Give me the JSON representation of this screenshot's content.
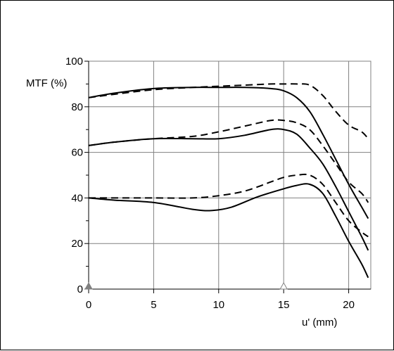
{
  "chart_data": {
    "type": "line",
    "title": "",
    "ylabel": "MTF (%)",
    "xlabel": "u' (mm)",
    "xlim": [
      0,
      21.7
    ],
    "ylim": [
      0,
      100
    ],
    "x_ticks": [
      0,
      5,
      10,
      15,
      20
    ],
    "y_ticks": [
      0,
      20,
      40,
      60,
      80,
      100
    ],
    "grid": true,
    "legend": "none",
    "markers": [
      {
        "x": 0,
        "y": 0,
        "shape": "triangle",
        "fill": "#808080"
      },
      {
        "x": 15,
        "y": 0,
        "shape": "triangle",
        "fill": "#ffffff"
      }
    ],
    "series": [
      {
        "style": "solid",
        "x": [
          0,
          2,
          5,
          8,
          10,
          12,
          14,
          15,
          16,
          17,
          18,
          19,
          20,
          21,
          21.5
        ],
        "y": [
          84,
          86,
          88,
          88.5,
          88.5,
          88.5,
          88,
          87,
          84,
          78,
          68,
          57,
          46,
          36,
          31
        ]
      },
      {
        "style": "dashed",
        "x": [
          0,
          2,
          5,
          8,
          10,
          12,
          14,
          15,
          16,
          17,
          18,
          19,
          20,
          21,
          21.5
        ],
        "y": [
          84,
          85.5,
          87.5,
          88.5,
          89,
          89.5,
          90,
          90,
          90,
          89.5,
          85,
          78,
          72,
          69,
          66
        ]
      },
      {
        "style": "solid",
        "x": [
          0,
          2,
          5,
          8,
          10,
          12,
          14,
          15,
          16,
          17,
          18,
          19,
          20,
          21,
          21.5
        ],
        "y": [
          63,
          64.5,
          66,
          66,
          66,
          67.5,
          70,
          70,
          68,
          62,
          55,
          45,
          34,
          23,
          17
        ]
      },
      {
        "style": "dashed",
        "x": [
          0,
          2,
          5,
          8,
          10,
          12,
          14,
          15,
          16,
          17,
          18,
          19,
          20,
          21,
          21.5
        ],
        "y": [
          63,
          64.5,
          66,
          67,
          69,
          71.5,
          74,
          74,
          73,
          70,
          63,
          55,
          47,
          42,
          38
        ]
      },
      {
        "style": "solid",
        "x": [
          0,
          2,
          5,
          8,
          9.5,
          11,
          13,
          15,
          16,
          17,
          18,
          19,
          20,
          21,
          21.5
        ],
        "y": [
          40,
          39,
          38,
          35,
          34.5,
          36,
          40.5,
          44,
          45.5,
          46,
          42,
          32,
          21,
          11,
          5
        ]
      },
      {
        "style": "dashed",
        "x": [
          0,
          2,
          5,
          8,
          10,
          12,
          14,
          15,
          16,
          17,
          18,
          19,
          20,
          21,
          21.5
        ],
        "y": [
          40,
          40,
          40,
          40,
          41,
          43,
          47,
          49,
          50,
          50,
          46,
          38,
          30,
          25,
          23
        ]
      }
    ]
  }
}
